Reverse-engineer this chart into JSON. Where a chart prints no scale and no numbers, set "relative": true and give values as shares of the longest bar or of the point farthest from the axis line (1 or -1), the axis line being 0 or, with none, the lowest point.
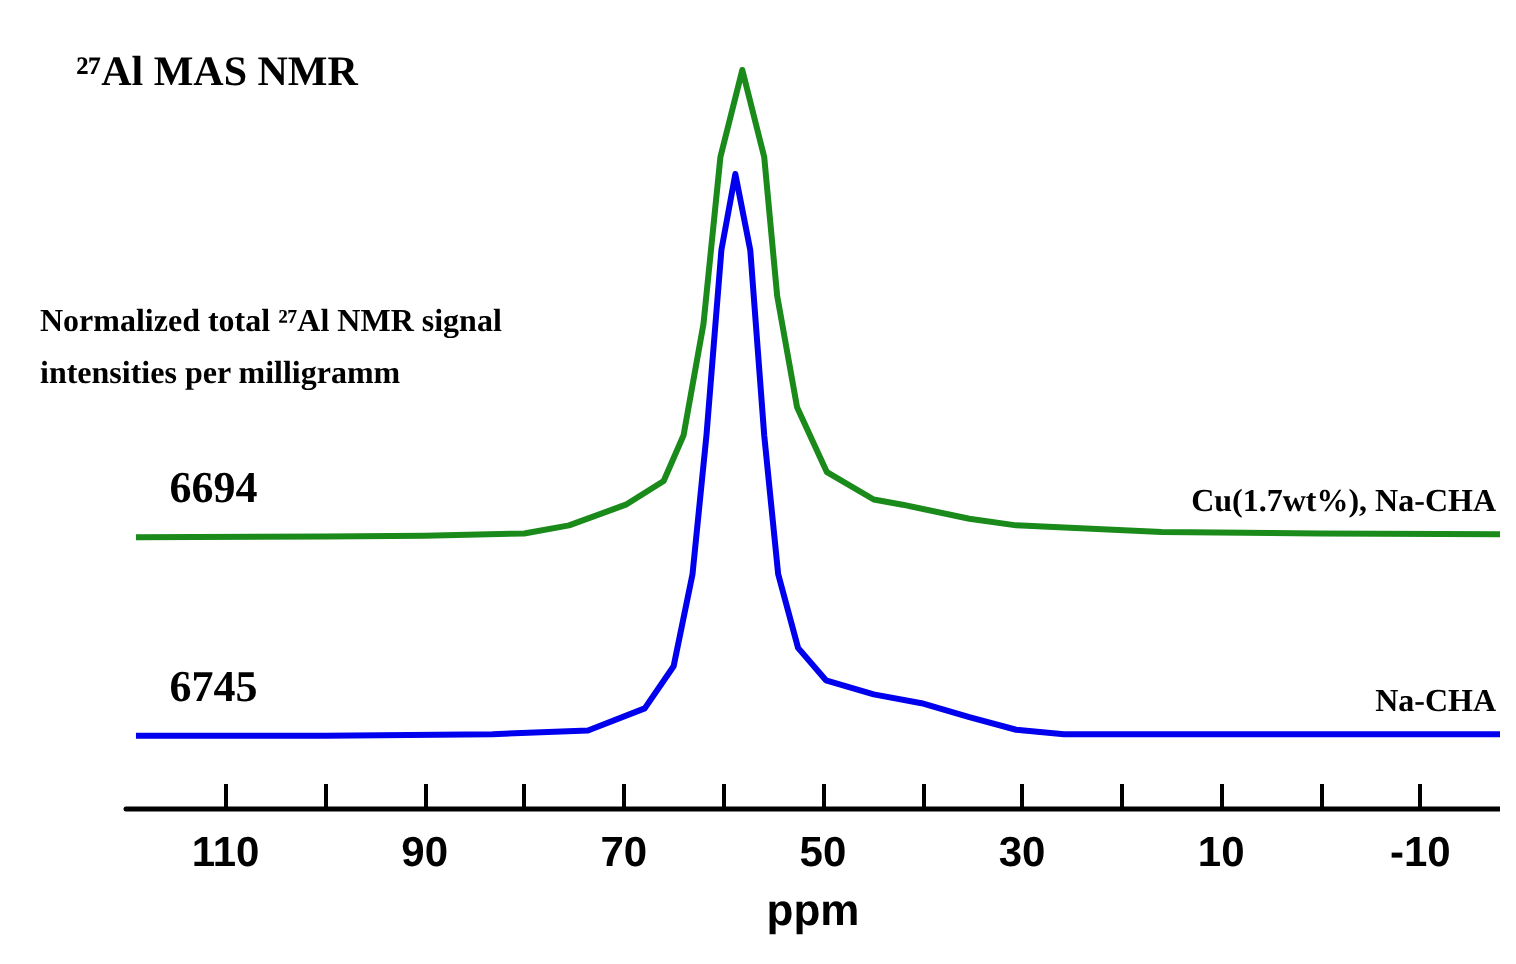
{
  "chart_data": {
    "type": "line",
    "title": "²⁷Al MAS NMR",
    "xlabel": "ppm",
    "relative": true,
    "xlim": [
      120,
      -18
    ],
    "xticks": [
      110,
      {
        "value": 100,
        "label": null
      },
      90,
      {
        "value": 80,
        "label": null
      },
      70,
      {
        "value": 60,
        "label": null
      },
      50,
      {
        "value": 40,
        "label": null
      },
      30,
      {
        "value": 20,
        "label": null
      },
      10,
      {
        "value": 0,
        "label": null
      },
      -10
    ],
    "series": [
      {
        "name": "Cu(1.7wt%), Na-CHA",
        "color": "#1a8a1a",
        "x": [
          119,
          100,
          90,
          80,
          75.5,
          69.8,
          66,
          64,
          62,
          60.3,
          58.1,
          55.9,
          54.6,
          52.6,
          49.6,
          44.9,
          42,
          35.3,
          30.6,
          16,
          0,
          -18
        ],
        "values": [
          0.367,
          0.368,
          0.369,
          0.372,
          0.383,
          0.411,
          0.443,
          0.505,
          0.656,
          0.882,
          1.0,
          0.882,
          0.694,
          0.543,
          0.455,
          0.418,
          0.411,
          0.392,
          0.383,
          0.374,
          0.372,
          0.371
        ]
      },
      {
        "name": "Na-CHA",
        "color": "#0000ee",
        "x": [
          119,
          100,
          83.2,
          73.6,
          67.9,
          65,
          63.1,
          61.7,
          60.2,
          58.8,
          57.3,
          55.9,
          54.5,
          52.5,
          49.7,
          44.9,
          40.1,
          35.3,
          30.6,
          25.8,
          0,
          -18
        ],
        "values": [
          0.098,
          0.098,
          0.1,
          0.105,
          0.135,
          0.192,
          0.317,
          0.505,
          0.756,
          0.859,
          0.756,
          0.505,
          0.317,
          0.217,
          0.173,
          0.154,
          0.142,
          0.123,
          0.106,
          0.1,
          0.1,
          0.1
        ]
      }
    ],
    "annotations": [
      "Normalized total ²⁷Al NMR signal intensities per milligramm",
      {
        "text": "6694",
        "x": 110,
        "y": 0.367
      },
      {
        "text": "6745",
        "x": 110,
        "y": 0.098
      }
    ],
    "grid": false,
    "legend": false,
    "marker": "none",
    "line_style": "solid"
  }
}
